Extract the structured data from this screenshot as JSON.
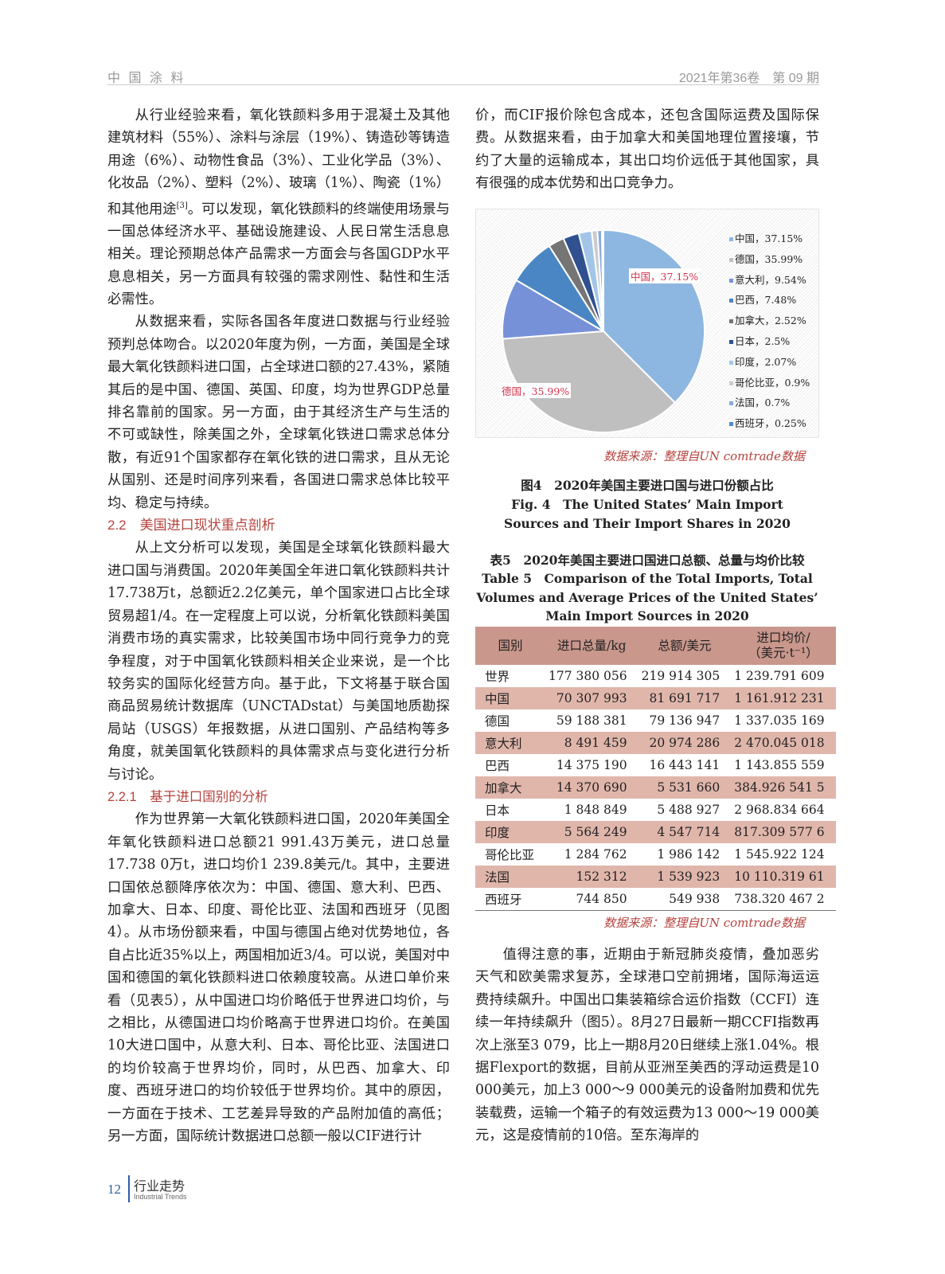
{
  "header": {
    "journal": "中 国 涂 料",
    "issue": "2021年第36卷　第 09 期"
  },
  "left": {
    "p1_a": "从行业经验来看，氧化铁颜料多用于混凝土及其他建筑材料（55%）、涂料与涂层（19%）、铸造砂等铸造用途（6%）、动物性食品（3%）、工业化学品（3%）、化妆品（2%）、塑料（2%）、玻璃（1%）、陶瓷（1%）和其他用途",
    "p1_cite": "[3]",
    "p1_b": "。可以发现，氧化铁颜料的终端使用场景与一国总体经济水平、基础设施建设、人民日常生活息息相关。理论预期总体产品需求一方面会与各国GDP水平息息相关，另一方面具有较强的需求刚性、黏性和生活必需性。",
    "p2": "从数据来看，实际各国各年度进口数据与行业经验预判总体吻合。以2020年度为例，一方面，美国是全球最大氧化铁颜料进口国，占全球进口额的27.43%，紧随其后的是中国、德国、英国、印度，均为世界GDP总量排名靠前的国家。另一方面，由于其经济生产与生活的不可或缺性，除美国之外，全球氧化铁进口需求总体分散，有近91个国家都存在氧化铁的进口需求，且从无论从国别、还是时间序列来看，各国进口需求总体比较平均、稳定与持续。",
    "h1": "2.2　美国进口现状重点剖析",
    "p3": "从上文分析可以发现，美国是全球氧化铁颜料最大进口国与消费国。2020年美国全年进口氧化铁颜料共计17.738万t，总额近2.2亿美元，单个国家进口占比全球贸易超1/4。在一定程度上可以说，分析氧化铁颜料美国消费市场的真实需求，比较美国市场中同行竞争力的竞争程度，对于中国氧化铁颜料相关企业来说，是一个比较务实的国际化经营方向。基于此，下文将基于联合国商品贸易统计数据库（UNCTADstat）与美国地质勘探局站（USGS）年报数据，从进口国别、产品结构等多角度，就美国氧化铁颜料的具体需求点与变化进行分析与讨论。",
    "h2": "2.2.1　基于进口国别的分析",
    "p4": "作为世界第一大氧化铁颜料进口国，2020年美国全年氧化铁颜料进口总额21 991.43万美元，进口总量17.738 0万t，进口均价1 239.8美元/t。其中，主要进口国依总额降序依次为：中国、德国、意大利、巴西、加拿大、日本、印度、哥伦比亚、法国和西班牙（见图4）。从市场份额来看，中国与德国占绝对优势地位，各自占比近35%以上，两国相加近3/4。可以说，美国对中国和德国的氧化铁颜料进口依赖度较高。从进口单价来看（见表5），从中国进口均价略低于世界进口均价，与之相比，从德国进口均价略高于世界进口均价。在美国10大进口国中，从意大利、日本、哥伦比亚、法国进口的均价较高于世界均价，同时，从巴西、加拿大、印度、西班牙进口的均价较低于世界均价。其中的原因，一方面在于技术、工艺差异导致的产品附加值的高低；另一方面，国际统计数据进口总额一般以CIF进行计"
  },
  "right": {
    "p_top": "价，而CIF报价除包含成本，还包含国际运费及国际保费。从数据来看，由于加拿大和美国地理位置接壤，节约了大量的运输成本，其出口均价远低于其他国家，具有很强的成本优势和出口竞争力。",
    "source": "数据来源：整理自UN comtrade数据",
    "fig_cn": "图4　2020年美国主要进口国与进口份额占比",
    "fig_en": "Fig. 4　The United States’ Main Import Sources and Their Import Shares in 2020",
    "tab_cn": "表5　2020年美国主要进口国进口总额、总量与均价比较",
    "tab_en": "Table 5　Comparison of the Total Imports, Total Volumes and Average Prices of the United States’ Main Import Sources in 2020",
    "p_bottom": "值得注意的事，近期由于新冠肺炎疫情，叠加恶劣天气和欧美需求复苏，全球港口空前拥堵，国际海运运费持续飙升。中国出口集装箱综合运价指数（CCFI）连续一年持续飙升（图5）。8月27日最新一期CCFI指数再次上涨至3 079，比上一期8月20日继续上涨1.04%。根据Flexport的数据，目前从亚洲至美西的浮动运费是10 000美元，加上3 000～9 000美元的设备附加费和优先装载费，运输一个箱子的有效运费为13 000～19 000美元，这是疫情前的10倍。至东海岸的"
  },
  "chart_data": {
    "type": "pie",
    "start": "top, clockwise",
    "slices": [
      {
        "label": "中国，37.15%",
        "name": "中国",
        "value": 37.15,
        "color": "#8db7e1"
      },
      {
        "label": "德国，35.99%",
        "name": "德国",
        "value": 35.99,
        "color": "#bfbfbf"
      },
      {
        "label": "意大利，9.54%",
        "name": "意大利",
        "value": 9.54,
        "color": "#7791d8"
      },
      {
        "label": "巴西，7.48%",
        "name": "巴西",
        "value": 7.48,
        "color": "#4a86c4"
      },
      {
        "label": "加拿大，2.52%",
        "name": "加拿大",
        "value": 2.52,
        "color": "#757575"
      },
      {
        "label": "日本，2.5%",
        "name": "日本",
        "value": 2.5,
        "color": "#30508f"
      },
      {
        "label": "印度，2.07%",
        "name": "印度",
        "value": 2.07,
        "color": "#a3c6e8"
      },
      {
        "label": "哥伦比亚，0.9%",
        "name": "哥伦比亚",
        "value": 0.9,
        "color": "#cccccc"
      },
      {
        "label": "法国，0.7%",
        "name": "法国",
        "value": 0.7,
        "color": "#88a9dc"
      },
      {
        "label": "西班牙，0.25%",
        "name": "西班牙",
        "value": 0.25,
        "color": "#4f8ad0"
      }
    ],
    "data_labels": [
      "中国，37.15%",
      "德国，35.99%"
    ],
    "label_color": "#d0344e",
    "legend": "right"
  },
  "table": {
    "headers": [
      "国别",
      "进口总量/kg",
      "总额/美元",
      "进口均价/",
      "（美元·t⁻¹）"
    ],
    "rows": [
      [
        "世界",
        "177 380 056",
        "219 914 305",
        "1 239.791 609"
      ],
      [
        "中国",
        "70 307 993",
        "81 691 717",
        "1 161.912 231"
      ],
      [
        "德国",
        "59 188 381",
        "79 136 947",
        "1 337.035 169"
      ],
      [
        "意大利",
        "8 491 459",
        "20 974 286",
        "2 470.045 018"
      ],
      [
        "巴西",
        "14 375 190",
        "16 443 141",
        "1 143.855 559"
      ],
      [
        "加拿大",
        "14 370 690",
        "5 531 660",
        "384.926 541 5"
      ],
      [
        "日本",
        "1 848 849",
        "5 488 927",
        "2 968.834 664"
      ],
      [
        "印度",
        "5 564 249",
        "4 547 714",
        "817.309 577 6"
      ],
      [
        "哥伦比亚",
        "1 284 762",
        "1 986 142",
        "1 545.922 124"
      ],
      [
        "法国",
        "152 312",
        "1 539 923",
        "10 110.319 61"
      ],
      [
        "西班牙",
        "744 850",
        "549 938",
        "738.320 467 2"
      ]
    ],
    "header_color": "#c9978c",
    "stripe_color": "#e0b6ab"
  },
  "footer": {
    "page": "12",
    "section_cn": "行业走势",
    "section_en": "Industrial Trends"
  }
}
